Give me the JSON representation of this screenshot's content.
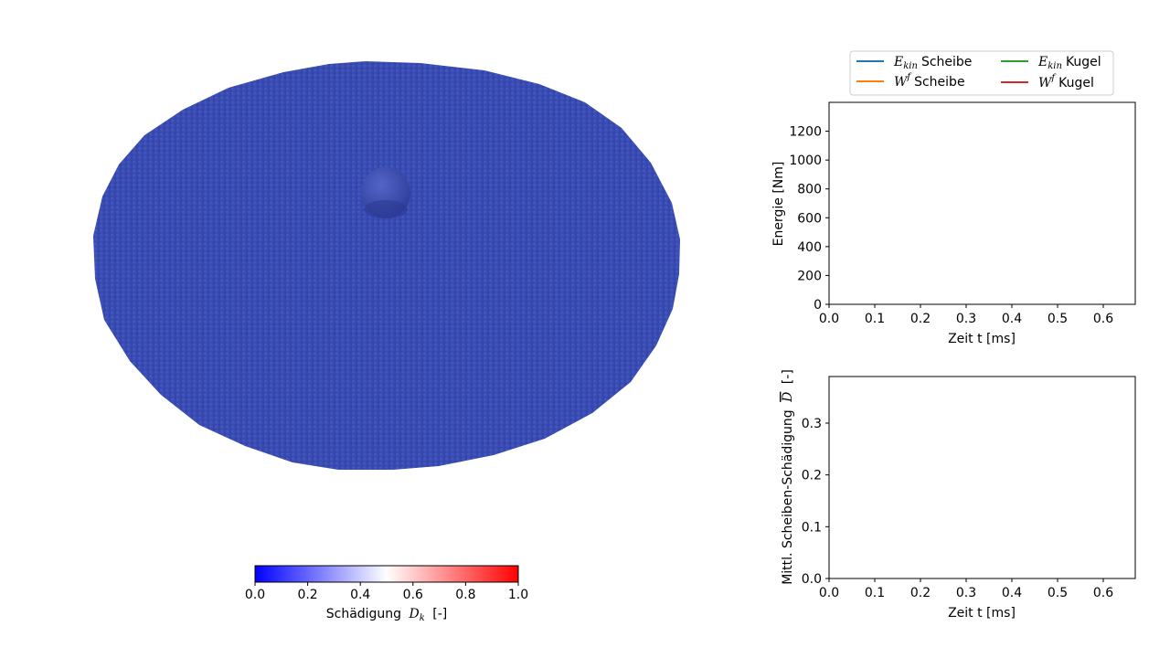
{
  "legend": {
    "items": [
      {
        "math": "E",
        "sub": "kin",
        "text": "Scheibe",
        "color": "#1f77b4"
      },
      {
        "math": "W",
        "sup": "f",
        "text": "Scheibe",
        "color": "#ff7f0e"
      },
      {
        "math": "E",
        "sub": "kin",
        "text": "Kugel",
        "color": "#2ca02c"
      },
      {
        "math": "W",
        "sup": "f",
        "text": "Kugel",
        "color": "#d62728"
      }
    ]
  },
  "colorbar": {
    "label_prefix": "Schädigung",
    "label_math": "D",
    "label_sub": "k",
    "label_suffix": "[-]",
    "ticks": [
      "0.0",
      "0.2",
      "0.4",
      "0.6",
      "0.8",
      "1.0"
    ],
    "colors": {
      "low": "#0000ff",
      "mid": "#ffffff",
      "high": "#ff0000"
    }
  },
  "scene": {
    "disk_color": "#3a4bb0",
    "sphere_color": "#3b4cb3"
  },
  "chart_data": [
    {
      "type": "line",
      "id": "energy",
      "xlabel": "Zeit t [ms]",
      "ylabel": "Energie [Nm]",
      "xlim": [
        0.0,
        0.67
      ],
      "ylim": [
        0,
        1400
      ],
      "xticks": [
        "0.0",
        "0.1",
        "0.2",
        "0.3",
        "0.4",
        "0.5",
        "0.6"
      ],
      "yticks": [
        "0",
        "200",
        "400",
        "600",
        "800",
        "1000",
        "1200"
      ],
      "series": []
    },
    {
      "type": "line",
      "id": "damage",
      "xlabel": "Zeit t [ms]",
      "ylabel_prefix": "Mittl. Scheiben-Schädigung",
      "ylabel_math": "D",
      "ylabel_suffix": "[-]",
      "xlim": [
        0.0,
        0.67
      ],
      "ylim": [
        0.0,
        0.39
      ],
      "xticks": [
        "0.0",
        "0.1",
        "0.2",
        "0.3",
        "0.4",
        "0.5",
        "0.6"
      ],
      "yticks": [
        "0.0",
        "0.1",
        "0.2",
        "0.3"
      ],
      "series": []
    }
  ]
}
